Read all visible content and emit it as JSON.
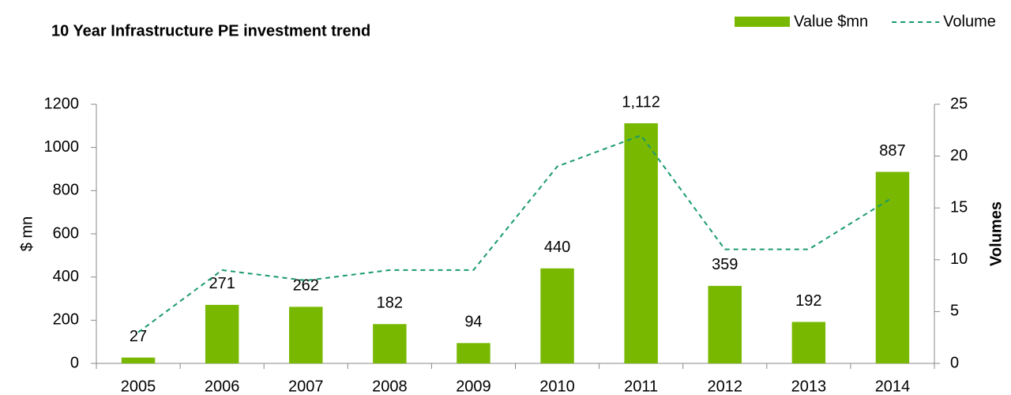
{
  "chart_data": {
    "type": "bar",
    "title": "10 Year Infrastructure PE investment trend",
    "y_label": "$ mn",
    "y2_label": "Volumes",
    "categories": [
      "2005",
      "2006",
      "2007",
      "2008",
      "2009",
      "2010",
      "2011",
      "2012",
      "2013",
      "2014"
    ],
    "series": [
      {
        "name": "Value $mn",
        "color": "#78b800",
        "type": "bar",
        "values": [
          27,
          271,
          262,
          182,
          94,
          440,
          1112,
          359,
          192,
          887
        ],
        "value_labels": [
          "27",
          "271",
          "262",
          "182",
          "94",
          "440",
          "1,112",
          "359",
          "192",
          "887"
        ]
      },
      {
        "name": "Volume",
        "color": "#1a9a6c",
        "type": "line",
        "axis": "y2",
        "values": [
          3,
          9,
          8,
          9,
          9,
          19,
          22,
          11,
          11,
          16
        ]
      }
    ],
    "ylim": [
      0,
      1200
    ],
    "yticks": [
      0,
      200,
      400,
      600,
      800,
      1000,
      1200
    ],
    "y2lim": [
      0,
      25
    ],
    "y2ticks": [
      0,
      5,
      10,
      15,
      20,
      25
    ],
    "legend": "top-right"
  }
}
